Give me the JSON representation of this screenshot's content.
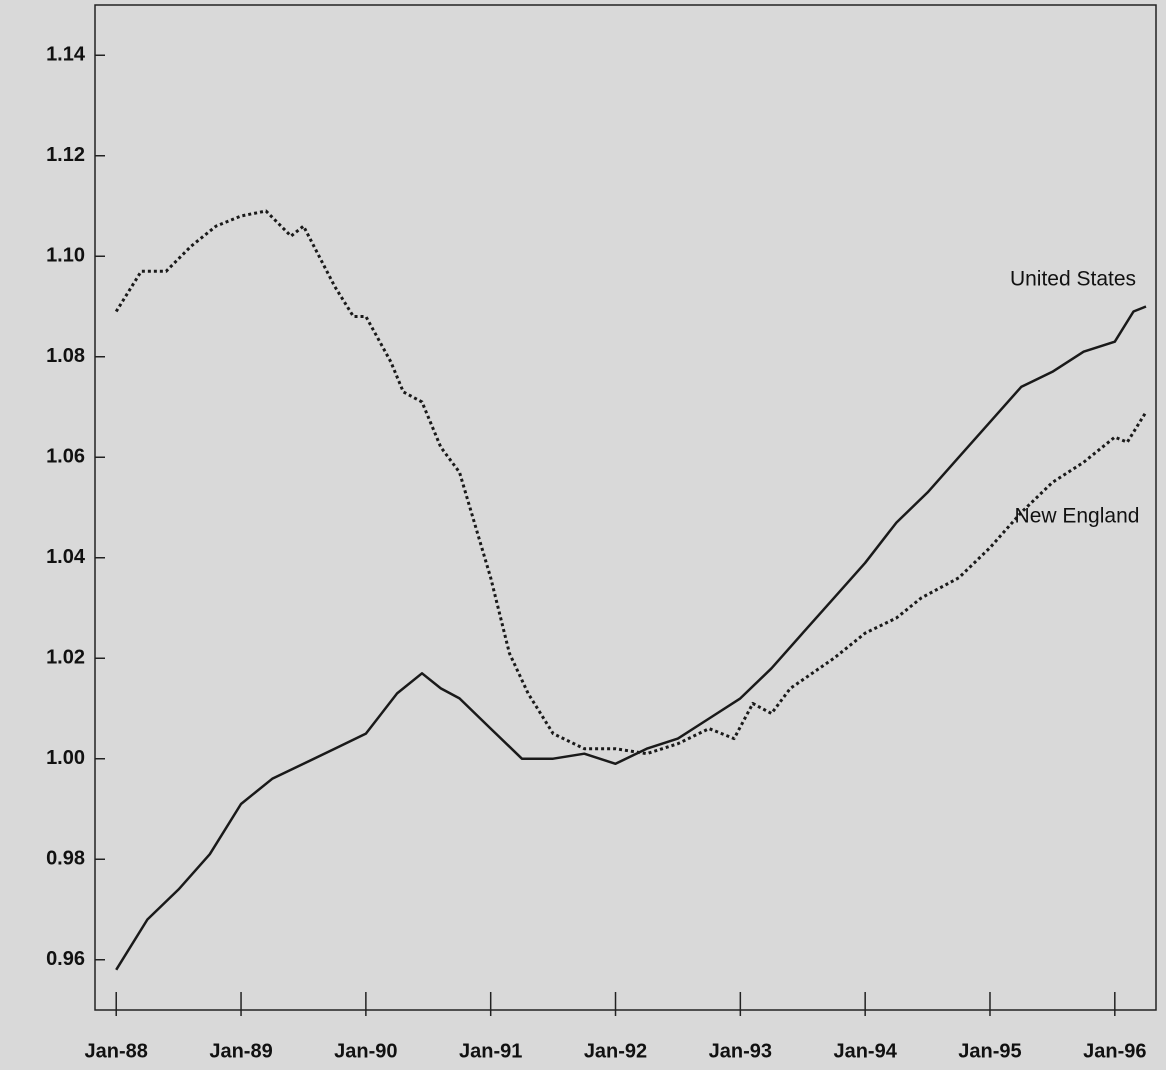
{
  "chart_data": {
    "type": "line",
    "xlim": [
      1987.83,
      1996.33
    ],
    "ylim": [
      0.95,
      1.15
    ],
    "xticks": [
      {
        "value": 1988,
        "label": "Jan-88"
      },
      {
        "value": 1989,
        "label": "Jan-89"
      },
      {
        "value": 1990,
        "label": "Jan-90"
      },
      {
        "value": 1991,
        "label": "Jan-91"
      },
      {
        "value": 1992,
        "label": "Jan-92"
      },
      {
        "value": 1993,
        "label": "Jan-93"
      },
      {
        "value": 1994,
        "label": "Jan-94"
      },
      {
        "value": 1995,
        "label": "Jan-95"
      },
      {
        "value": 1996,
        "label": "Jan-96"
      }
    ],
    "yticks": [
      0.96,
      0.98,
      {
        "value": 1,
        "label": "1.00"
      },
      1.02,
      1.04,
      1.06,
      1.08,
      {
        "value": 1.1,
        "label": "1.10"
      },
      1.12,
      1.14
    ],
    "series": [
      {
        "name": "United States",
        "color": "#1a1a1a",
        "line_style": "solid",
        "x": [
          1988.0,
          1988.25,
          1988.5,
          1988.75,
          1989.0,
          1989.25,
          1989.5,
          1989.75,
          1990.0,
          1990.25,
          1990.45,
          1990.6,
          1990.75,
          1991.0,
          1991.25,
          1991.5,
          1991.75,
          1992.0,
          1992.25,
          1992.5,
          1992.75,
          1993.0,
          1993.25,
          1993.5,
          1993.75,
          1994.0,
          1994.25,
          1994.5,
          1994.75,
          1995.0,
          1995.25,
          1995.5,
          1995.75,
          1996.0,
          1996.15,
          1996.25
        ],
        "values": [
          0.958,
          0.968,
          0.974,
          0.981,
          0.991,
          0.996,
          0.999,
          1.002,
          1.005,
          1.013,
          1.017,
          1.014,
          1.012,
          1.006,
          1.0,
          1.0,
          1.001,
          0.999,
          1.002,
          1.004,
          1.008,
          1.012,
          1.018,
          1.025,
          1.032,
          1.039,
          1.047,
          1.053,
          1.06,
          1.067,
          1.074,
          1.077,
          1.081,
          1.083,
          1.089,
          1.09
        ]
      },
      {
        "name": "New England",
        "color": "#1a1a1a",
        "line_style": "dotted",
        "x": [
          1988.0,
          1988.2,
          1988.4,
          1988.6,
          1988.8,
          1989.0,
          1989.2,
          1989.4,
          1989.5,
          1989.75,
          1989.9,
          1990.0,
          1990.2,
          1990.3,
          1990.45,
          1990.6,
          1990.75,
          1991.0,
          1991.15,
          1991.3,
          1991.5,
          1991.75,
          1992.0,
          1992.25,
          1992.5,
          1992.75,
          1992.95,
          1993.1,
          1993.25,
          1993.4,
          1993.75,
          1994.0,
          1994.25,
          1994.45,
          1994.75,
          1995.0,
          1995.25,
          1995.5,
          1995.75,
          1996.0,
          1996.1,
          1996.25
        ],
        "values": [
          1.089,
          1.097,
          1.097,
          1.102,
          1.106,
          1.108,
          1.109,
          1.104,
          1.106,
          1.094,
          1.088,
          1.088,
          1.079,
          1.073,
          1.071,
          1.062,
          1.057,
          1.036,
          1.021,
          1.013,
          1.005,
          1.002,
          1.002,
          1.001,
          1.003,
          1.006,
          1.004,
          1.011,
          1.009,
          1.014,
          1.02,
          1.025,
          1.028,
          1.032,
          1.036,
          1.042,
          1.049,
          1.055,
          1.059,
          1.064,
          1.063,
          1.069
        ]
      }
    ]
  }
}
